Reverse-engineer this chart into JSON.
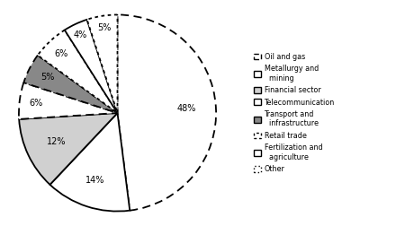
{
  "values": [
    48,
    14,
    12,
    6,
    5,
    6,
    4,
    5
  ],
  "colors": [
    "white",
    "white",
    "#d0d0d0",
    "white",
    "#888888",
    "white",
    "white",
    "white"
  ],
  "edge_styles": [
    "dashed",
    "solid",
    "solid",
    "dashed",
    "dashed",
    "dotted",
    "solid",
    "dotted"
  ],
  "pct_labels": [
    "48%",
    "14%",
    "12%",
    "6%",
    "5%",
    "6%",
    "4%",
    "5%"
  ],
  "legend_labels": [
    "Oil and gas",
    "Metallurgy and\n  mining",
    "Financial sector",
    "Telecommunication",
    "Transport and\n  infrastructure",
    "Retail trade",
    "Fertilization and\n  agriculture",
    "Other"
  ],
  "legend_markers": [
    "||",
    "□",
    "□",
    "L‹",
    "■",
    "└·",
    "□",
    "…·"
  ],
  "figsize": [
    4.5,
    2.52
  ],
  "dpi": 100,
  "startangle": 90
}
